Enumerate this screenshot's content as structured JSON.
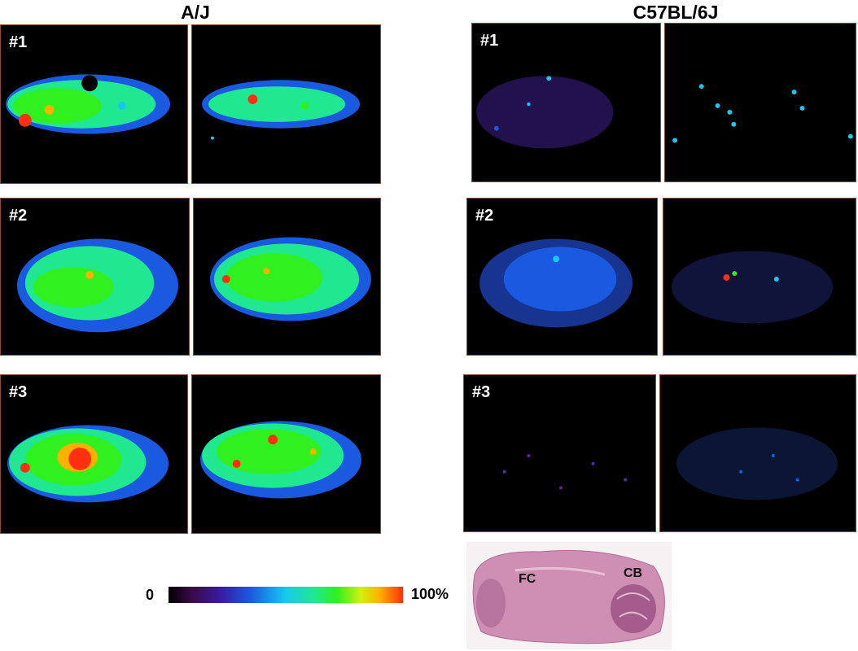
{
  "titles": {
    "left": "A/J",
    "right": "C57BL/6J"
  },
  "panels": {
    "aj": [
      "#1",
      "#2",
      "#3"
    ],
    "c57": [
      "#1",
      "#2",
      "#3"
    ]
  },
  "colorbar": {
    "min_label": "0",
    "max_label": "100%"
  },
  "histology": {
    "fc_label": "FC",
    "cb_label": "CB"
  },
  "colors": {
    "background": "#000000",
    "panel_border": "#8a4a3a",
    "low": "#3a1aa0",
    "mid": "#18c8f0",
    "high_green": "#30f020",
    "hot": "#ff3010"
  }
}
